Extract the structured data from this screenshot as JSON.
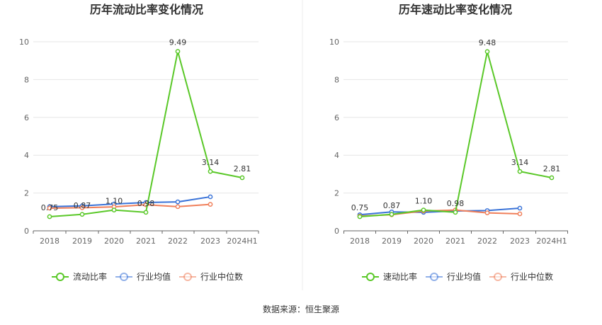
{
  "chart_data": [
    {
      "type": "line",
      "title": "历年流动比率变化情况",
      "categories": [
        "2018",
        "2019",
        "2020",
        "2021",
        "2022",
        "2023",
        "2024H1"
      ],
      "y_ticks": [
        "0",
        "2",
        "4",
        "6",
        "8",
        "10"
      ],
      "ylim": [
        0,
        10
      ],
      "grid": true,
      "legend_position": "bottom",
      "series": [
        {
          "name": "流动比率",
          "color": "#5ac828",
          "values": [
            0.75,
            0.87,
            1.1,
            0.98,
            9.49,
            3.14,
            2.81
          ],
          "labels": [
            "0.75",
            "0.87",
            "1.10",
            "0.98",
            "9.49",
            "3.14",
            "2.81"
          ]
        },
        {
          "name": "行业均值",
          "color": "#3a73d8",
          "values": [
            1.28,
            1.32,
            1.42,
            1.5,
            1.53,
            1.8,
            null
          ]
        },
        {
          "name": "行业中位数",
          "color": "#f07f5a",
          "values": [
            1.2,
            1.22,
            1.27,
            1.38,
            1.28,
            1.4,
            null
          ]
        }
      ]
    },
    {
      "type": "line",
      "title": "历年速动比率变化情况",
      "categories": [
        "2018",
        "2019",
        "2020",
        "2021",
        "2022",
        "2023",
        "2024H1"
      ],
      "y_ticks": [
        "0",
        "2",
        "4",
        "6",
        "8",
        "10"
      ],
      "ylim": [
        0,
        10
      ],
      "grid": true,
      "legend_position": "bottom",
      "series": [
        {
          "name": "速动比率",
          "color": "#5ac828",
          "values": [
            0.75,
            0.87,
            1.1,
            0.98,
            9.48,
            3.14,
            2.81
          ],
          "labels": [
            "0.75",
            "0.87",
            "1.10",
            "0.98",
            "9.48",
            "3.14",
            "2.81"
          ]
        },
        {
          "name": "行业均值",
          "color": "#3a73d8",
          "values": [
            0.85,
            1.0,
            0.98,
            1.05,
            1.07,
            1.2,
            null
          ]
        },
        {
          "name": "行业中位数",
          "color": "#f07f5a",
          "values": [
            0.78,
            0.85,
            1.05,
            1.1,
            0.95,
            0.9,
            null
          ]
        }
      ]
    }
  ],
  "footer": {
    "source_text": "数据来源：恒生聚源"
  }
}
